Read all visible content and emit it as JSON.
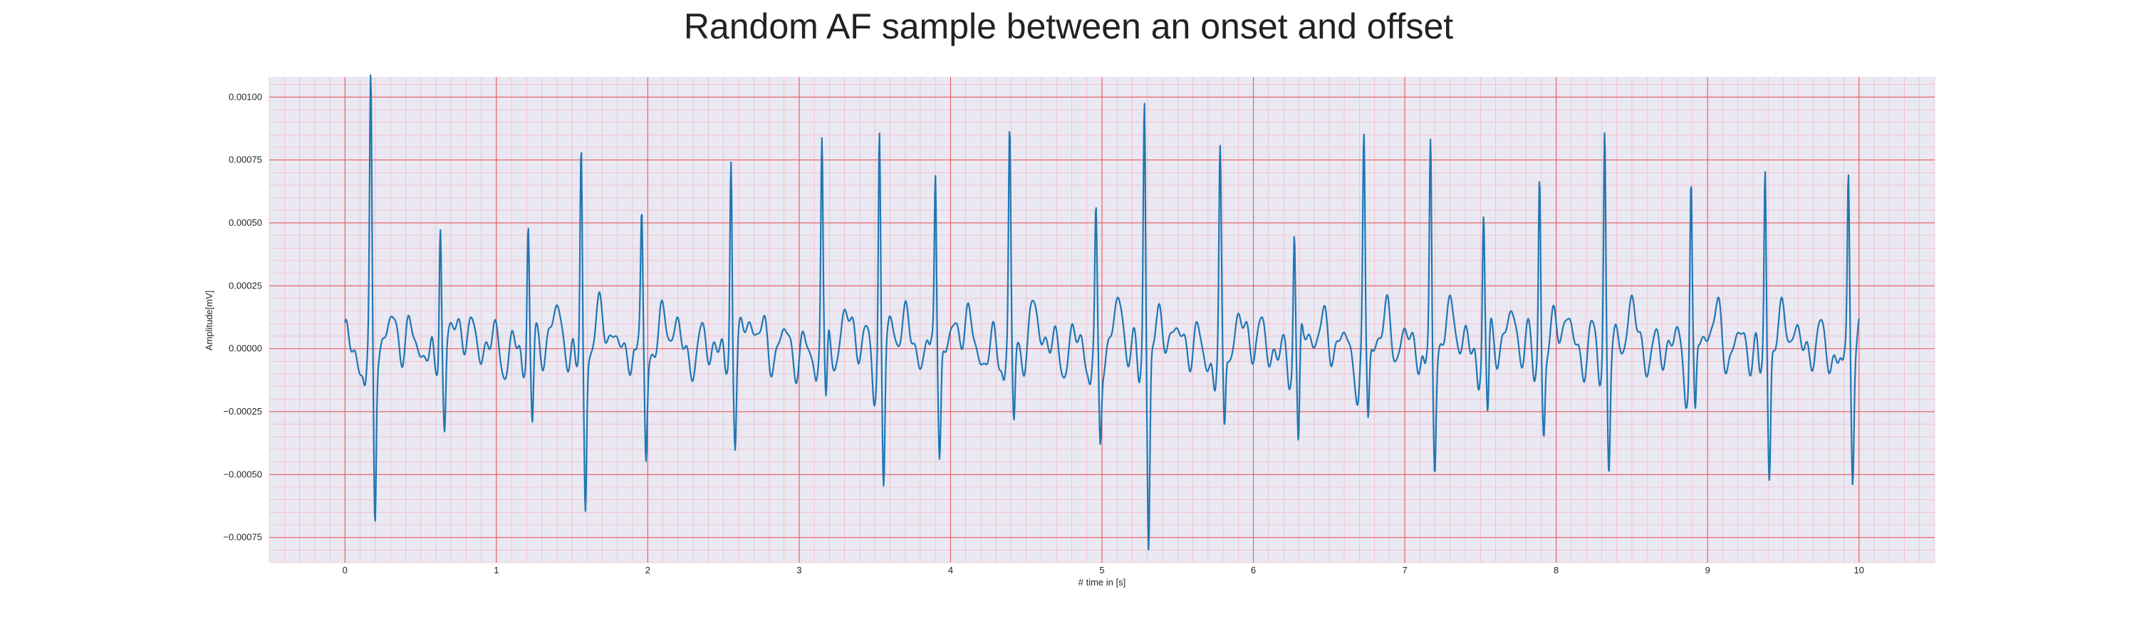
{
  "chart_data": {
    "type": "line",
    "title": "Random AF sample between an onset and offset",
    "xlabel": "# time in [s]",
    "ylabel": "Amplitude[mV]",
    "xlim": [
      -0.5,
      10.5
    ],
    "ylim": [
      -0.00085,
      0.00108
    ],
    "x_ticks": [
      "0",
      "1",
      "2",
      "3",
      "4",
      "5",
      "6",
      "7",
      "8",
      "9",
      "10"
    ],
    "y_ticks": [
      "0.00100",
      "0.00075",
      "0.00050",
      "0.00025",
      "0.00000",
      "−0.00025",
      "−0.00050",
      "−0.00075"
    ],
    "grid": "ECG-style major and minor red grid",
    "series": [
      {
        "color": "#1f77b4",
        "x_start": 0,
        "x_end": 10,
        "beats": [
          {
            "t": 0.17,
            "peak": 0.00097,
            "trough": -0.00068
          },
          {
            "t": 0.63,
            "peak": 0.00058,
            "trough": -0.00031
          },
          {
            "t": 1.21,
            "peak": 0.00053,
            "trough": -0.00034
          },
          {
            "t": 1.56,
            "peak": 0.00083,
            "trough": -0.00059
          },
          {
            "t": 1.96,
            "peak": 0.0005,
            "trough": -0.00039
          },
          {
            "t": 2.55,
            "peak": 0.00084,
            "trough": -0.00031
          },
          {
            "t": 3.15,
            "peak": 0.00084,
            "trough": -0.00031
          },
          {
            "t": 3.53,
            "peak": 0.00089,
            "trough": -0.00051
          },
          {
            "t": 3.9,
            "peak": 0.00073,
            "trough": -0.00039
          },
          {
            "t": 4.39,
            "peak": 0.00081,
            "trough": -0.00031
          },
          {
            "t": 4.96,
            "peak": 0.0005,
            "trough": -0.00034
          },
          {
            "t": 5.28,
            "peak": 0.001,
            "trough": -0.00077
          },
          {
            "t": 5.78,
            "peak": 0.0007,
            "trough": -0.00036
          },
          {
            "t": 6.27,
            "peak": 0.00054,
            "trough": -0.00046
          },
          {
            "t": 6.73,
            "peak": 0.00078,
            "trough": -0.0003
          },
          {
            "t": 7.17,
            "peak": 0.00083,
            "trough": -0.0004
          },
          {
            "t": 7.52,
            "peak": 0.00054,
            "trough": -0.00034
          },
          {
            "t": 7.89,
            "peak": 0.00075,
            "trough": -0.00029
          },
          {
            "t": 8.32,
            "peak": 0.00088,
            "trough": -0.00045
          },
          {
            "t": 8.89,
            "peak": 0.0007,
            "trough": -0.00032
          },
          {
            "t": 9.38,
            "peak": 0.00077,
            "trough": -0.00047
          },
          {
            "t": 9.93,
            "peak": 0.0007,
            "trough": -0.00047
          }
        ]
      }
    ]
  }
}
